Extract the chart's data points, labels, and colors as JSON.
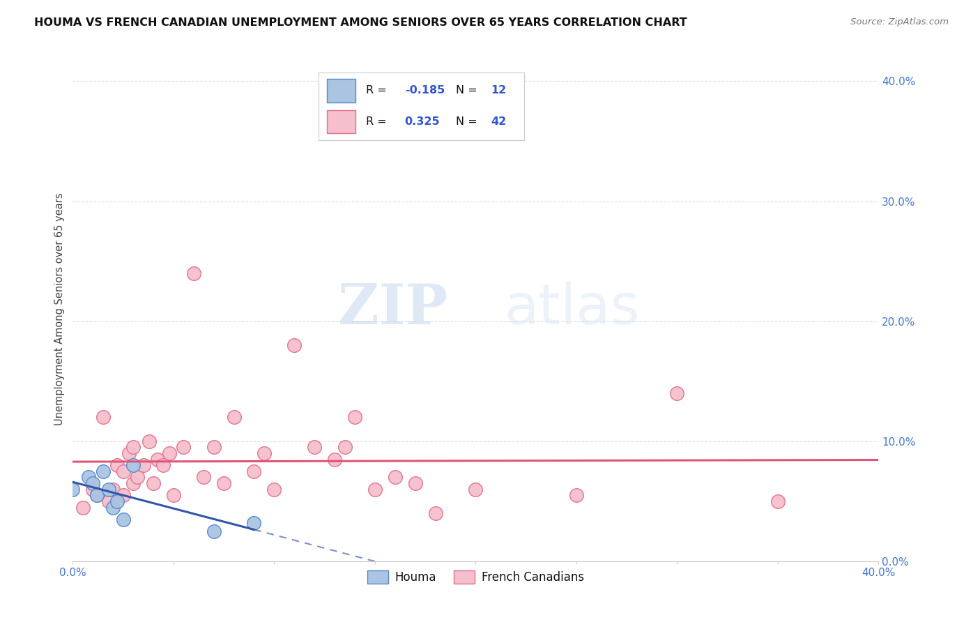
{
  "title": "HOUMA VS FRENCH CANADIAN UNEMPLOYMENT AMONG SENIORS OVER 65 YEARS CORRELATION CHART",
  "source": "Source: ZipAtlas.com",
  "ylabel": "Unemployment Among Seniors over 65 years",
  "xlim": [
    0.0,
    0.4
  ],
  "ylim": [
    0.0,
    0.42
  ],
  "xticks": [
    0.0,
    0.05,
    0.1,
    0.15,
    0.2,
    0.25,
    0.3,
    0.35,
    0.4
  ],
  "yticks": [
    0.0,
    0.1,
    0.2,
    0.3,
    0.4
  ],
  "houma_color": "#aac4e2",
  "houma_edge_color": "#5588cc",
  "french_color": "#f5bfcc",
  "french_edge_color": "#e07090",
  "houma_line_color": "#3355aa",
  "french_line_color": "#e05575",
  "tick_color": "#4477cc",
  "houma_R": -0.185,
  "houma_N": 12,
  "french_R": 0.325,
  "french_N": 42,
  "houma_scatter_x": [
    0.0,
    0.008,
    0.01,
    0.012,
    0.015,
    0.018,
    0.02,
    0.022,
    0.025,
    0.03,
    0.07,
    0.09
  ],
  "houma_scatter_y": [
    0.06,
    0.07,
    0.065,
    0.055,
    0.075,
    0.06,
    0.045,
    0.05,
    0.035,
    0.08,
    0.025,
    0.032
  ],
  "french_scatter_x": [
    0.005,
    0.01,
    0.012,
    0.015,
    0.018,
    0.02,
    0.022,
    0.025,
    0.025,
    0.028,
    0.03,
    0.03,
    0.032,
    0.035,
    0.038,
    0.04,
    0.042,
    0.045,
    0.048,
    0.05,
    0.055,
    0.06,
    0.065,
    0.07,
    0.075,
    0.08,
    0.09,
    0.095,
    0.1,
    0.11,
    0.12,
    0.13,
    0.135,
    0.14,
    0.15,
    0.16,
    0.17,
    0.18,
    0.2,
    0.25,
    0.3,
    0.35
  ],
  "french_scatter_y": [
    0.045,
    0.06,
    0.055,
    0.12,
    0.05,
    0.06,
    0.08,
    0.075,
    0.055,
    0.09,
    0.065,
    0.095,
    0.07,
    0.08,
    0.1,
    0.065,
    0.085,
    0.08,
    0.09,
    0.055,
    0.095,
    0.24,
    0.07,
    0.095,
    0.065,
    0.12,
    0.075,
    0.09,
    0.06,
    0.18,
    0.095,
    0.085,
    0.095,
    0.12,
    0.06,
    0.07,
    0.065,
    0.04,
    0.06,
    0.055,
    0.14,
    0.05
  ],
  "watermark_zip": "ZIP",
  "watermark_atlas": "atlas",
  "background_color": "#ffffff",
  "grid_color": "#dddddd",
  "legend_border_color": "#cccccc"
}
